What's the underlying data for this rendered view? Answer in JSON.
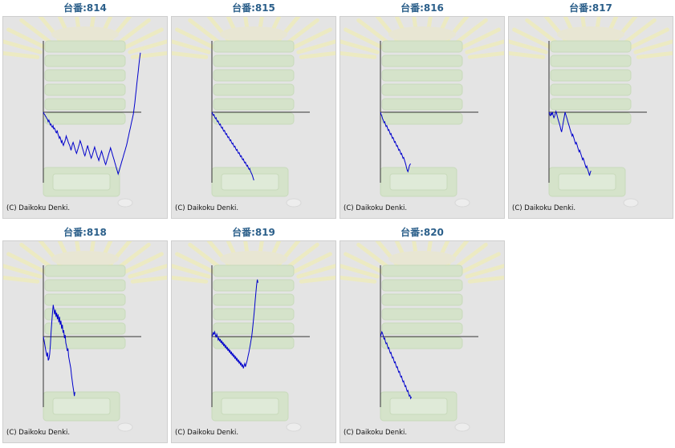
{
  "copyright": "(C) Daikoku Denki.",
  "line_color": "#0000cc",
  "title_color": "#2b5f8a",
  "chart_data": [
    {
      "type": "line",
      "title": "台番:814",
      "y": [
        0,
        -2,
        -3,
        -5,
        -6,
        -8,
        -9,
        -12,
        -10,
        -13,
        -16,
        -15,
        -18,
        -19,
        -17,
        -21,
        -20,
        -22,
        -25,
        -26,
        -23,
        -27,
        -30,
        -33,
        -31,
        -34,
        -38,
        -36,
        -40,
        -42,
        -39,
        -37,
        -34,
        -30,
        -33,
        -35,
        -38,
        -40,
        -42,
        -45,
        -48,
        -44,
        -40,
        -38,
        -41,
        -44,
        -47,
        -50,
        -52,
        -49,
        -46,
        -43,
        -40,
        -36,
        -38,
        -41,
        -44,
        -47,
        -50,
        -53,
        -55,
        -52,
        -48,
        -45,
        -42,
        -46,
        -49,
        -52,
        -55,
        -58,
        -56,
        -53,
        -50,
        -47,
        -44,
        -47,
        -50,
        -53,
        -56,
        -58,
        -61,
        -58,
        -55,
        -52,
        -49,
        -52,
        -55,
        -58,
        -61,
        -64,
        -66,
        -63,
        -60,
        -57,
        -54,
        -51,
        -48,
        -45,
        -48,
        -51,
        -54,
        -57,
        -60,
        -63,
        -66,
        -69,
        -72,
        -75,
        -78,
        -75,
        -72,
        -69,
        -66,
        -63,
        -60,
        -57,
        -54,
        -51,
        -48,
        -45,
        -42,
        -38,
        -34,
        -30,
        -26,
        -22,
        -18,
        -14,
        -10,
        -6,
        -2,
        5,
        12,
        20,
        28,
        36,
        44,
        52,
        60,
        68,
        75
      ],
      "ylim": [
        -80,
        90
      ]
    },
    {
      "type": "line",
      "title": "台番:815",
      "y": [
        0,
        -2,
        -4,
        -3,
        -6,
        -8,
        -7,
        -10,
        -12,
        -11,
        -14,
        -16,
        -15,
        -18,
        -20,
        -19,
        -22,
        -24,
        -23,
        -26,
        -28,
        -27,
        -30,
        -32,
        -31,
        -34,
        -36,
        -35,
        -38,
        -40,
        -39,
        -42,
        -44,
        -43,
        -46,
        -48,
        -47,
        -50,
        -52,
        -51,
        -54,
        -56,
        -55,
        -58,
        -60,
        -59,
        -62,
        -64,
        -63,
        -66,
        -68,
        -67,
        -70,
        -72,
        -71,
        -74,
        -76,
        -78,
        -80,
        -83,
        -86
      ],
      "ylim": [
        -80,
        90
      ]
    },
    {
      "type": "line",
      "title": "台番:816",
      "y": [
        0,
        -3,
        -5,
        -8,
        -10,
        -13,
        -12,
        -15,
        -18,
        -17,
        -20,
        -23,
        -22,
        -25,
        -28,
        -27,
        -30,
        -33,
        -32,
        -35,
        -38,
        -37,
        -40,
        -43,
        -42,
        -45,
        -48,
        -47,
        -50,
        -53,
        -52,
        -55,
        -58,
        -57,
        -60,
        -63,
        -66,
        -70,
        -73,
        -75,
        -72,
        -68,
        -66,
        -65
      ],
      "ylim": [
        -80,
        90
      ]
    },
    {
      "type": "line",
      "title": "台番:817",
      "y": [
        0,
        -2,
        -5,
        -1,
        -3,
        0,
        -4,
        -7,
        -5,
        -2,
        1,
        -2,
        -6,
        -9,
        -12,
        -15,
        -18,
        -22,
        -25,
        -20,
        -15,
        -10,
        -5,
        0,
        -3,
        -6,
        -9,
        -12,
        -15,
        -18,
        -21,
        -24,
        -27,
        -30,
        -28,
        -31,
        -34,
        -37,
        -40,
        -38,
        -41,
        -44,
        -47,
        -50,
        -48,
        -51,
        -54,
        -57,
        -60,
        -58,
        -61,
        -64,
        -67,
        -70,
        -68,
        -71,
        -74,
        -77,
        -80,
        -76,
        -74
      ],
      "ylim": [
        -80,
        90
      ]
    },
    {
      "type": "line",
      "title": "台番:818",
      "y": [
        0,
        -5,
        -10,
        -15,
        -20,
        -25,
        -20,
        -30,
        -28,
        -22,
        -10,
        5,
        18,
        30,
        40,
        35,
        28,
        34,
        25,
        30,
        22,
        28,
        18,
        25,
        15,
        20,
        10,
        15,
        5,
        8,
        -2,
        2,
        -8,
        -12,
        -18,
        -15,
        -25,
        -30,
        -35,
        -40,
        -48,
        -55,
        -62,
        -68,
        -75,
        -70
      ],
      "ylim": [
        -80,
        90
      ]
    },
    {
      "type": "line",
      "title": "台番:819",
      "y": [
        0,
        2,
        5,
        3,
        6,
        2,
        -1,
        3,
        0,
        -4,
        -2,
        -6,
        -3,
        -8,
        -5,
        -10,
        -7,
        -12,
        -9,
        -14,
        -11,
        -16,
        -13,
        -18,
        -15,
        -20,
        -17,
        -22,
        -19,
        -24,
        -21,
        -26,
        -23,
        -28,
        -25,
        -30,
        -27,
        -32,
        -29,
        -34,
        -31,
        -36,
        -33,
        -38,
        -35,
        -40,
        -37,
        -34,
        -38,
        -35,
        -32,
        -28,
        -24,
        -20,
        -15,
        -10,
        -5,
        0,
        8,
        16,
        25,
        35,
        45,
        55,
        65,
        72,
        68
      ],
      "ylim": [
        -80,
        90
      ]
    },
    {
      "type": "line",
      "title": "台番:820",
      "y": [
        0,
        3,
        6,
        4,
        1,
        -3,
        -2,
        -6,
        -9,
        -8,
        -12,
        -15,
        -14,
        -18,
        -21,
        -20,
        -24,
        -27,
        -26,
        -30,
        -33,
        -32,
        -36,
        -39,
        -38,
        -42,
        -45,
        -44,
        -48,
        -51,
        -50,
        -54,
        -57,
        -56,
        -60,
        -63,
        -62,
        -66,
        -69,
        -68,
        -72,
        -75,
        -74,
        -78,
        -76
      ],
      "ylim": [
        -80,
        90
      ]
    }
  ]
}
